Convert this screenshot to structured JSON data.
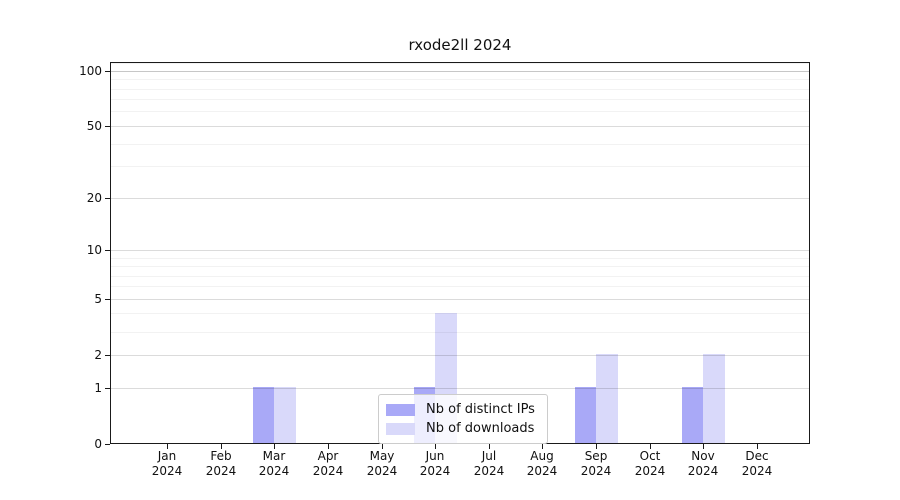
{
  "title": "rxode2ll 2024",
  "chart_data": {
    "type": "bar",
    "title": "rxode2ll 2024",
    "categories": [
      "Jan",
      "Feb",
      "Mar",
      "Apr",
      "May",
      "Jun",
      "Jul",
      "Aug",
      "Sep",
      "Oct",
      "Nov",
      "Dec"
    ],
    "year": "2024",
    "series": [
      {
        "name": "Nb of distinct IPs",
        "color": "#a9a9f7",
        "values": [
          0,
          0,
          1,
          0,
          0,
          1,
          0,
          0,
          1,
          0,
          1,
          0
        ]
      },
      {
        "name": "Nb of downloads",
        "color": "#d9d9fa",
        "values": [
          0,
          0,
          1,
          0,
          0,
          4,
          0,
          0,
          2,
          0,
          2,
          0
        ]
      }
    ],
    "xlabel": "",
    "ylabel": "",
    "y_scale": "log10(1+y)",
    "y_ticks": [
      0,
      1,
      2,
      5,
      10,
      20,
      50,
      100
    ],
    "y_minor_ticks": [
      3,
      4,
      6,
      7,
      8,
      9,
      30,
      40,
      60,
      70,
      80,
      90,
      110
    ],
    "ylim": [
      0,
      110
    ],
    "grid": "horizontal",
    "legend_position": "inside-bottom-center",
    "colors": {
      "spine": "#1a1a1a",
      "background": "#ffffff",
      "legend_border": "#cccccc"
    }
  }
}
